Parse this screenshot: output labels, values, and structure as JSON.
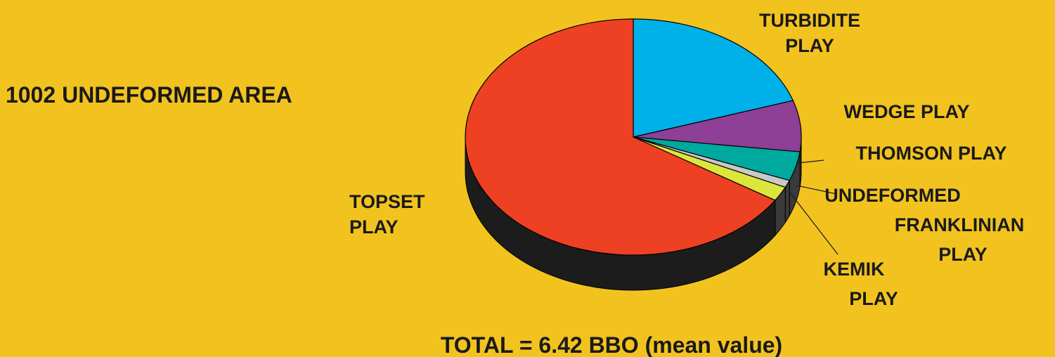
{
  "chart_data": {
    "type": "pie",
    "title": "1002 UNDEFORMED AREA",
    "subtitle": "TOTAL = 6.42 BBO (mean value)",
    "categories": [
      "TURBIDITE\nPLAY",
      "WEDGE PLAY",
      "THOMSON PLAY",
      "UNDEFORMED\nFRANKLINIAN\nPLAY",
      "KEMIK\nPLAY",
      "TOPSET\nPLAY"
    ],
    "values": [
      20,
      7,
      4,
      1,
      2,
      66
    ],
    "colors": [
      "#00b0e8",
      "#8e3f96",
      "#00a99d",
      "#c9c9c9",
      "#dce53c",
      "#ee4023"
    ]
  }
}
